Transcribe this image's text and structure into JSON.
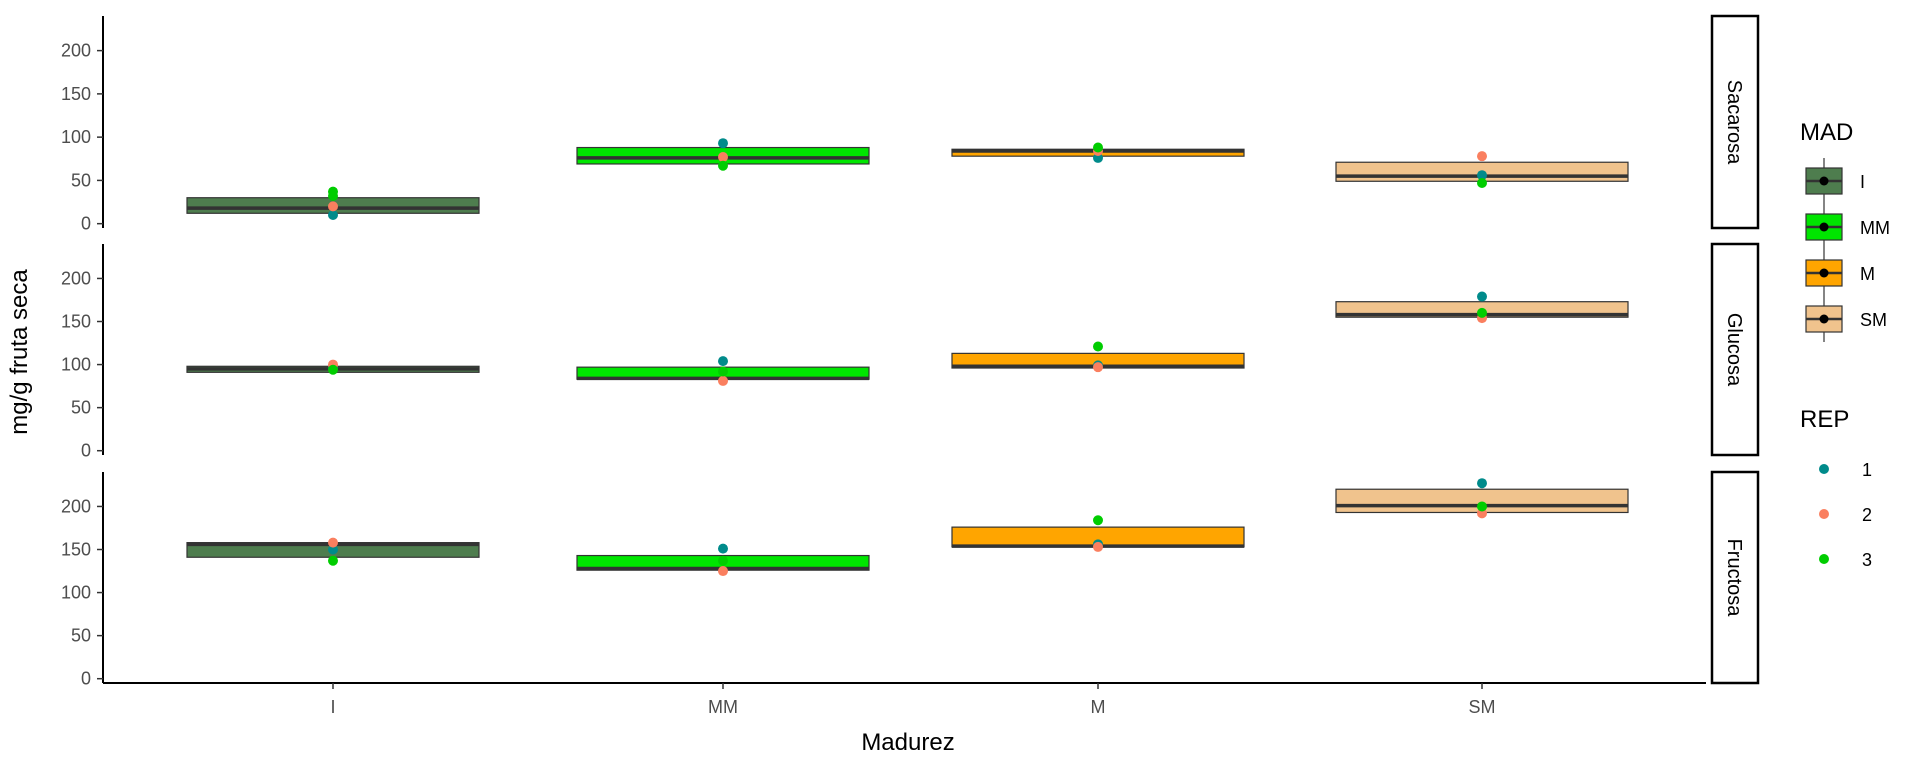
{
  "chart_data": {
    "type": "boxplot",
    "x_label": "Madurez",
    "y_label": "mg/g fruta seca",
    "categories": [
      "I",
      "MM",
      "M",
      "SM"
    ],
    "y_ticks": [
      0,
      50,
      100,
      150,
      200
    ],
    "ylim": [
      -5,
      240
    ],
    "grid": false,
    "fill_colors": {
      "I": "#4E7D4E",
      "MM": "#00E600",
      "M": "#FFA500",
      "SM": "#F0C38D"
    },
    "rep_colors": {
      "1": "#008B8B",
      "2": "#FA7F5F",
      "3": "#00CD00"
    },
    "panels": [
      {
        "name": "Sacarosa",
        "boxes": [
          {
            "cat": "I",
            "q1": 12,
            "median": 18,
            "q3": 30
          },
          {
            "cat": "MM",
            "q1": 69,
            "median": 76,
            "q3": 88
          },
          {
            "cat": "M",
            "q1": 78,
            "median": 84,
            "q3": 86
          },
          {
            "cat": "SM",
            "q1": 49,
            "median": 55,
            "q3": 71
          }
        ],
        "points": [
          {
            "cat": "I",
            "rep": "1",
            "y": 10
          },
          {
            "cat": "I",
            "rep": "2",
            "y": 20
          },
          {
            "cat": "I",
            "rep": "3",
            "y": 32
          },
          {
            "cat": "I",
            "rep": "3",
            "y": 37
          },
          {
            "cat": "MM",
            "rep": "1",
            "y": 93
          },
          {
            "cat": "MM",
            "rep": "2",
            "y": 77
          },
          {
            "cat": "MM",
            "rep": "3",
            "y": 67
          },
          {
            "cat": "M",
            "rep": "1",
            "y": 76
          },
          {
            "cat": "M",
            "rep": "2",
            "y": 84
          },
          {
            "cat": "M",
            "rep": "3",
            "y": 88
          },
          {
            "cat": "SM",
            "rep": "1",
            "y": 56
          },
          {
            "cat": "SM",
            "rep": "2",
            "y": 78
          },
          {
            "cat": "SM",
            "rep": "3",
            "y": 47
          }
        ]
      },
      {
        "name": "Glucosa",
        "boxes": [
          {
            "cat": "I",
            "q1": 91,
            "median": 95,
            "q3": 98
          },
          {
            "cat": "MM",
            "q1": 83,
            "median": 84,
            "q3": 97
          },
          {
            "cat": "M",
            "q1": 96,
            "median": 98,
            "q3": 113
          },
          {
            "cat": "SM",
            "q1": 155,
            "median": 158,
            "q3": 173
          }
        ],
        "points": [
          {
            "cat": "I",
            "rep": "1",
            "y": 96
          },
          {
            "cat": "I",
            "rep": "2",
            "y": 100
          },
          {
            "cat": "I",
            "rep": "3",
            "y": 94
          },
          {
            "cat": "MM",
            "rep": "1",
            "y": 104
          },
          {
            "cat": "MM",
            "rep": "2",
            "y": 81
          },
          {
            "cat": "MM",
            "rep": "3",
            "y": 92
          },
          {
            "cat": "M",
            "rep": "1",
            "y": 99
          },
          {
            "cat": "M",
            "rep": "2",
            "y": 97
          },
          {
            "cat": "M",
            "rep": "3",
            "y": 121
          },
          {
            "cat": "SM",
            "rep": "1",
            "y": 179
          },
          {
            "cat": "SM",
            "rep": "2",
            "y": 154
          },
          {
            "cat": "SM",
            "rep": "3",
            "y": 160
          }
        ]
      },
      {
        "name": "Fructosa",
        "boxes": [
          {
            "cat": "I",
            "q1": 141,
            "median": 156,
            "q3": 158
          },
          {
            "cat": "MM",
            "q1": 126,
            "median": 128,
            "q3": 143
          },
          {
            "cat": "M",
            "q1": 153,
            "median": 154,
            "q3": 176
          },
          {
            "cat": "SM",
            "q1": 193,
            "median": 201,
            "q3": 220
          }
        ],
        "points": [
          {
            "cat": "I",
            "rep": "1",
            "y": 150
          },
          {
            "cat": "I",
            "rep": "2",
            "y": 158
          },
          {
            "cat": "I",
            "rep": "3",
            "y": 137
          },
          {
            "cat": "MM",
            "rep": "1",
            "y": 151
          },
          {
            "cat": "MM",
            "rep": "2",
            "y": 125
          },
          {
            "cat": "MM",
            "rep": "3",
            "y": 137
          },
          {
            "cat": "M",
            "rep": "1",
            "y": 156
          },
          {
            "cat": "M",
            "rep": "2",
            "y": 153
          },
          {
            "cat": "M",
            "rep": "3",
            "y": 184
          },
          {
            "cat": "SM",
            "rep": "1",
            "y": 227
          },
          {
            "cat": "SM",
            "rep": "2",
            "y": 192
          },
          {
            "cat": "SM",
            "rep": "3",
            "y": 200
          }
        ]
      }
    ],
    "legends": {
      "fill": {
        "title": "MAD",
        "items": [
          "I",
          "MM",
          "M",
          "SM"
        ]
      },
      "color": {
        "title": "REP",
        "items": [
          "1",
          "2",
          "3"
        ]
      },
      "position": "right"
    }
  }
}
